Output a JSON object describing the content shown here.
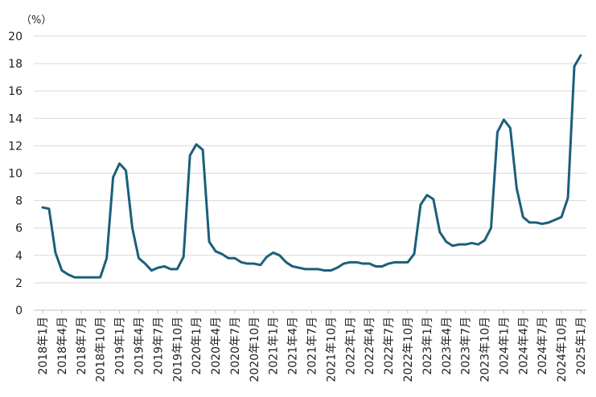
{
  "chart_data": {
    "type": "line",
    "ylabel": "（%）",
    "ylim": [
      0,
      20
    ],
    "y_ticks": [
      0,
      2,
      4,
      6,
      8,
      10,
      12,
      14,
      16,
      18,
      20
    ],
    "grid": "horizontal",
    "line_color": "#1b5f7a",
    "x_tick_labels": [
      "2018年1月",
      "2018年4月",
      "2018年7月",
      "2018年10月",
      "2019年1月",
      "2019年4月",
      "2019年7月",
      "2019年10月",
      "2020年1月",
      "2020年4月",
      "2020年7月",
      "2020年10月",
      "2021年1月",
      "2021年4月",
      "2021年7月",
      "2021年10月",
      "2022年1月",
      "2022年4月",
      "2022年7月",
      "2022年10月",
      "2023年1月",
      "2023年4月",
      "2023年7月",
      "2023年10月",
      "2024年1月",
      "2024年4月",
      "2024年7月",
      "2024年10月",
      "2025年1月"
    ],
    "series": [
      {
        "values": [
          7.5,
          7.4,
          4.2,
          2.9,
          2.6,
          2.4,
          2.4,
          2.4,
          2.4,
          2.4,
          3.8,
          9.7,
          10.7,
          10.2,
          6.0,
          3.8,
          3.4,
          2.9,
          3.1,
          3.2,
          3.0,
          3.0,
          3.9,
          11.3,
          12.1,
          11.7,
          5.0,
          4.3,
          4.1,
          3.8,
          3.8,
          3.5,
          3.4,
          3.4,
          3.3,
          3.9,
          4.2,
          4.0,
          3.5,
          3.2,
          3.1,
          3.0,
          3.0,
          3.0,
          2.9,
          2.9,
          3.1,
          3.4,
          3.5,
          3.5,
          3.4,
          3.4,
          3.2,
          3.2,
          3.4,
          3.5,
          3.5,
          3.5,
          4.1,
          7.7,
          8.4,
          8.1,
          5.7,
          5.0,
          4.7,
          4.8,
          4.8,
          4.9,
          4.8,
          5.1,
          6.0,
          13.0,
          13.9,
          13.3,
          8.9,
          6.8,
          6.4,
          6.4,
          6.3,
          6.4,
          6.6,
          6.8,
          8.2,
          17.8,
          18.6
        ]
      }
    ]
  }
}
